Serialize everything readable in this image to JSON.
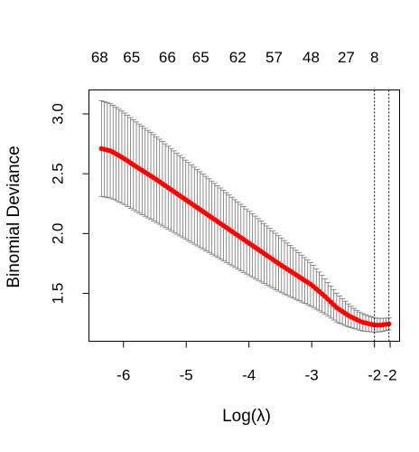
{
  "chart_data": {
    "type": "scatter",
    "xlabel": "Log(λ)",
    "ylabel": "Binomial Deviance",
    "xlim": [
      -6.55,
      -1.6
    ],
    "ylim": [
      1.1,
      3.2
    ],
    "x_ticks": [
      "-6",
      "-5",
      "-4",
      "-3",
      "-2"
    ],
    "x_tick_values": [
      -6,
      -5,
      -4,
      -3,
      -2
    ],
    "extra_x_tick": {
      "value": -1.75,
      "label": "-2"
    },
    "y_ticks": [
      "1.5",
      "2.0",
      "2.5",
      "3.0"
    ],
    "y_tick_values": [
      1.5,
      2.0,
      2.5,
      3.0
    ],
    "top_labels": [
      {
        "x": -6.38,
        "label": "68"
      },
      {
        "x": -5.87,
        "label": "65"
      },
      {
        "x": -5.3,
        "label": "66"
      },
      {
        "x": -4.77,
        "label": "65"
      },
      {
        "x": -4.18,
        "label": "62"
      },
      {
        "x": -3.6,
        "label": "57"
      },
      {
        "x": -3.01,
        "label": "48"
      },
      {
        "x": -2.45,
        "label": "27"
      },
      {
        "x": -2.0,
        "label": "8"
      }
    ],
    "vlines": [
      -2.0,
      -1.77
    ],
    "points": {
      "x_start": -6.35,
      "x_end": -1.77,
      "count": 100
    },
    "curve": [
      [
        -6.35,
        2.71
      ],
      [
        -6.2,
        2.69
      ],
      [
        -6.0,
        2.63
      ],
      [
        -5.8,
        2.56
      ],
      [
        -5.5,
        2.46
      ],
      [
        -5.0,
        2.28
      ],
      [
        -4.5,
        2.1
      ],
      [
        -4.0,
        1.92
      ],
      [
        -3.5,
        1.74
      ],
      [
        -3.0,
        1.57
      ],
      [
        -2.8,
        1.48
      ],
      [
        -2.6,
        1.38
      ],
      [
        -2.4,
        1.31
      ],
      [
        -2.2,
        1.26
      ],
      [
        -2.0,
        1.235
      ],
      [
        -1.9,
        1.235
      ],
      [
        -1.77,
        1.245
      ]
    ],
    "band": [
      [
        -6.35,
        0.4
      ],
      [
        -6.0,
        0.385
      ],
      [
        -5.5,
        0.36
      ],
      [
        -5.0,
        0.33
      ],
      [
        -4.5,
        0.3
      ],
      [
        -4.0,
        0.27
      ],
      [
        -3.5,
        0.23
      ],
      [
        -3.0,
        0.18
      ],
      [
        -2.6,
        0.12
      ],
      [
        -2.3,
        0.08
      ],
      [
        -2.0,
        0.06
      ],
      [
        -1.77,
        0.05
      ]
    ],
    "colors": {
      "points": "#ff0000",
      "errorbars": "#808080",
      "frame": "#000000"
    },
    "grid": false,
    "legend": "none"
  }
}
